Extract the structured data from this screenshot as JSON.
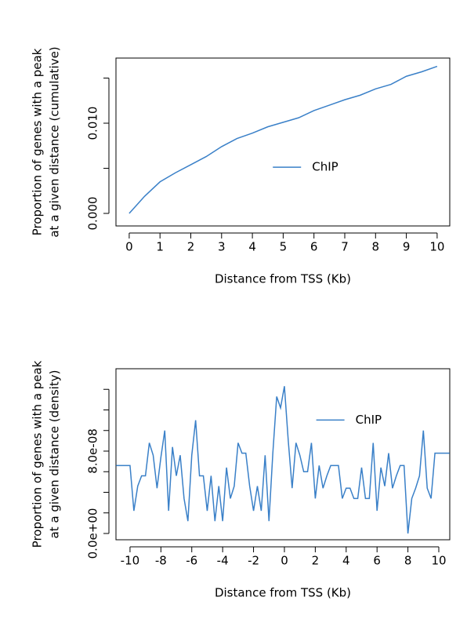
{
  "chart_data": [
    {
      "type": "line",
      "xlabel": "Distance from TSS (Kb)",
      "ylabel": [
        "Proportion of genes with a peak",
        "at a given distance (cumulative)"
      ],
      "x": [
        0,
        0.5,
        1,
        1.5,
        2,
        2.5,
        3,
        3.5,
        4,
        4.5,
        5,
        5.5,
        6,
        6.5,
        7,
        7.5,
        8,
        8.5,
        9,
        9.5,
        10
      ],
      "series": [
        {
          "name": "ChIP",
          "color": "#3a80c8",
          "values": [
            0,
            0.0019,
            0.0035,
            0.0045,
            0.0054,
            0.0063,
            0.0074,
            0.0083,
            0.0089,
            0.0096,
            0.0101,
            0.0106,
            0.0114,
            0.012,
            0.0126,
            0.0131,
            0.0138,
            0.0143,
            0.0152,
            0.0157,
            0.0163
          ]
        }
      ],
      "xlim": [
        -0.43,
        10.41
      ],
      "ylim": [
        -0.00139,
        0.01722
      ],
      "xticks": [
        0,
        1,
        2,
        3,
        4,
        5,
        6,
        7,
        8,
        9,
        10
      ],
      "yticks": [
        {
          "value": 0,
          "label": "0.000"
        },
        {
          "value": 0.005,
          "label": null
        },
        {
          "value": 0.01,
          "label": "0.010"
        },
        {
          "value": 0.015,
          "label": null
        }
      ],
      "legend_position": "center"
    },
    {
      "type": "line",
      "xlabel": "Distance from TSS (Kb)",
      "ylabel": [
        "Proportion of genes with a peak",
        "at a given distance (density)"
      ],
      "x": [
        -10.9,
        -10,
        -9.75,
        -9.5,
        -9.25,
        -9,
        -8.75,
        -8.5,
        -8.25,
        -8,
        -7.75,
        -7.5,
        -7.25,
        -7,
        -6.75,
        -6.5,
        -6.25,
        -6,
        -5.75,
        -5.5,
        -5.25,
        -5,
        -4.75,
        -4.5,
        -4.25,
        -4,
        -3.75,
        -3.5,
        -3.25,
        -3,
        -2.75,
        -2.5,
        -2.25,
        -2,
        -1.75,
        -1.5,
        -1.25,
        -1,
        -0.75,
        -0.5,
        -0.25,
        0,
        0.25,
        0.5,
        0.75,
        1,
        1.25,
        1.5,
        1.75,
        2,
        2.25,
        2.5,
        2.75,
        3,
        3.25,
        3.5,
        3.75,
        4,
        4.25,
        4.5,
        4.75,
        5,
        5.25,
        5.5,
        5.75,
        6,
        6.25,
        6.5,
        6.75,
        7,
        7.25,
        7.5,
        7.75,
        8,
        8.25,
        8.5,
        8.75,
        9,
        9.25,
        9.5,
        9.75,
        10,
        10.7
      ],
      "series": [
        {
          "name": "ChIP",
          "color": "#3a80c8",
          "values": [
            6.6e-08,
            6.6e-08,
            2.2e-08,
            4.6e-08,
            5.6e-08,
            5.6e-08,
            8.8e-08,
            7.6e-08,
            4.4e-08,
            7.4e-08,
            1e-07,
            2.2e-08,
            8.4e-08,
            5.6e-08,
            7.6e-08,
            3.4e-08,
            1.2e-08,
            7.6e-08,
            1.1e-07,
            5.6e-08,
            5.6e-08,
            2.2e-08,
            5.6e-08,
            1.2e-08,
            4.6e-08,
            1.2e-08,
            6.4e-08,
            3.4e-08,
            4.6e-08,
            8.8e-08,
            7.8e-08,
            7.8e-08,
            4.6e-08,
            2.2e-08,
            4.6e-08,
            2.2e-08,
            7.6e-08,
            1.2e-08,
            7.8e-08,
            1.33e-07,
            1.22e-07,
            1.43e-07,
            9e-08,
            4.4e-08,
            8.8e-08,
            7.6e-08,
            6e-08,
            6e-08,
            8.8e-08,
            3.4e-08,
            6.6e-08,
            4.4e-08,
            5.6e-08,
            6.6e-08,
            6.6e-08,
            6.6e-08,
            3.4e-08,
            4.4e-08,
            4.4e-08,
            3.4e-08,
            3.4e-08,
            6.4e-08,
            3.4e-08,
            3.4e-08,
            8.8e-08,
            2.2e-08,
            6.4e-08,
            4.6e-08,
            7.8e-08,
            4.4e-08,
            5.6e-08,
            6.6e-08,
            6.6e-08,
            0,
            3.4e-08,
            4.4e-08,
            5.6e-08,
            1e-07,
            4.4e-08,
            3.4e-08,
            7.8e-08,
            7.8e-08,
            7.8e-08
          ]
        }
      ],
      "xlim": [
        -10.91,
        10.71
      ],
      "ylim": [
        -6.1e-09,
        1.6e-07
      ],
      "xticks": [
        -10,
        -8,
        -6,
        -4,
        -2,
        0,
        2,
        4,
        6,
        8,
        10
      ],
      "yticks": [
        {
          "value": 0,
          "label": "0.0e+00"
        },
        {
          "value": 2e-08,
          "label": null
        },
        {
          "value": 4e-08,
          "label": null
        },
        {
          "value": 6e-08,
          "label": null
        },
        {
          "value": 8e-08,
          "label": "8.0e-08"
        },
        {
          "value": 1e-07,
          "label": null
        },
        {
          "value": 1.2e-07,
          "label": null
        },
        {
          "value": 1.4e-07,
          "label": null
        }
      ],
      "legend_position": "top-right"
    }
  ]
}
